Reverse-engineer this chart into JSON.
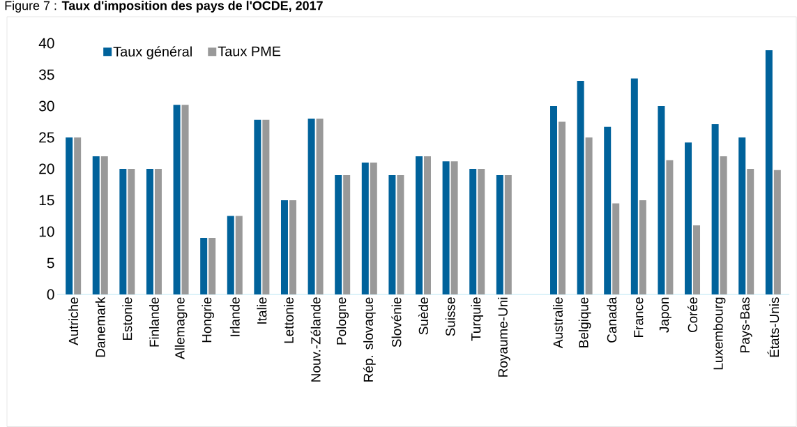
{
  "chart_data": {
    "type": "bar",
    "title": "Figure 7 : **Taux d'imposition des pays de l'OCDE, 2017**",
    "categories": [
      "Autriche",
      "Danemark",
      "Estonie",
      "Finlande",
      "Allemagne",
      "Hongrie",
      "Irlande",
      "Italie",
      "Lettonie",
      "Nouv.-Zélande",
      "Pologne",
      "Rép. slovaque",
      "Slovénie",
      "Suède",
      "Suisse",
      "Turquie",
      "Royaume-Uni",
      null,
      "Australie",
      "Belgique",
      "Canada",
      "France",
      "Japon",
      "Corée",
      "Luxembourg",
      "Pays-Bas",
      "États-Unis"
    ],
    "series": [
      {
        "name": "Taux général",
        "color": "#00629b",
        "values": [
          25,
          22,
          20,
          20,
          30.2,
          9,
          12.5,
          27.8,
          15,
          28,
          19,
          21,
          19,
          22,
          21.2,
          20,
          19,
          null,
          30,
          34,
          26.7,
          34.4,
          30,
          24.2,
          27.1,
          25,
          38.9
        ]
      },
      {
        "name": "Taux PME",
        "color": "#999999",
        "values": [
          25,
          22,
          20,
          20,
          30.2,
          9,
          12.5,
          27.8,
          15,
          28,
          19,
          21,
          19,
          22,
          21.2,
          20,
          19,
          null,
          27.5,
          25,
          14.5,
          15,
          21.4,
          11,
          22,
          20,
          19.8
        ]
      }
    ],
    "ylim": [
      0,
      40
    ],
    "yticks": [
      0,
      5,
      10,
      15,
      20,
      25,
      30,
      35,
      40
    ],
    "legend": "top left"
  }
}
